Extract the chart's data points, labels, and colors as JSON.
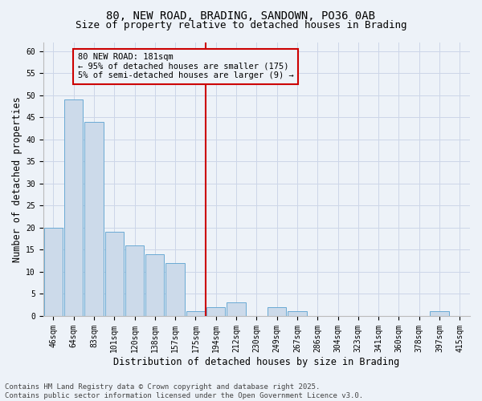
{
  "title": "80, NEW ROAD, BRADING, SANDOWN, PO36 0AB",
  "subtitle": "Size of property relative to detached houses in Brading",
  "xlabel": "Distribution of detached houses by size in Brading",
  "ylabel": "Number of detached properties",
  "categories": [
    "46sqm",
    "64sqm",
    "83sqm",
    "101sqm",
    "120sqm",
    "138sqm",
    "157sqm",
    "175sqm",
    "194sqm",
    "212sqm",
    "230sqm",
    "249sqm",
    "267sqm",
    "286sqm",
    "304sqm",
    "323sqm",
    "341sqm",
    "360sqm",
    "378sqm",
    "397sqm",
    "415sqm"
  ],
  "values": [
    20,
    49,
    44,
    19,
    16,
    14,
    12,
    1,
    2,
    3,
    0,
    2,
    1,
    0,
    0,
    0,
    0,
    0,
    0,
    1,
    0
  ],
  "bar_color": "#ccdaea",
  "bar_edge_color": "#6aaad4",
  "vline_x_index": 7,
  "vline_color": "#cc0000",
  "annotation_text": "80 NEW ROAD: 181sqm\n← 95% of detached houses are smaller (175)\n5% of semi-detached houses are larger (9) →",
  "annotation_box_color": "#cc0000",
  "annotation_text_color": "#000000",
  "ylim": [
    0,
    62
  ],
  "yticks": [
    0,
    5,
    10,
    15,
    20,
    25,
    30,
    35,
    40,
    45,
    50,
    55,
    60
  ],
  "grid_color": "#ccd6e8",
  "bg_color": "#edf2f8",
  "footer_line1": "Contains HM Land Registry data © Crown copyright and database right 2025.",
  "footer_line2": "Contains public sector information licensed under the Open Government Licence v3.0.",
  "title_fontsize": 10,
  "subtitle_fontsize": 9,
  "axis_label_fontsize": 8.5,
  "tick_fontsize": 7,
  "footer_fontsize": 6.5,
  "ann_fontsize": 7.5
}
